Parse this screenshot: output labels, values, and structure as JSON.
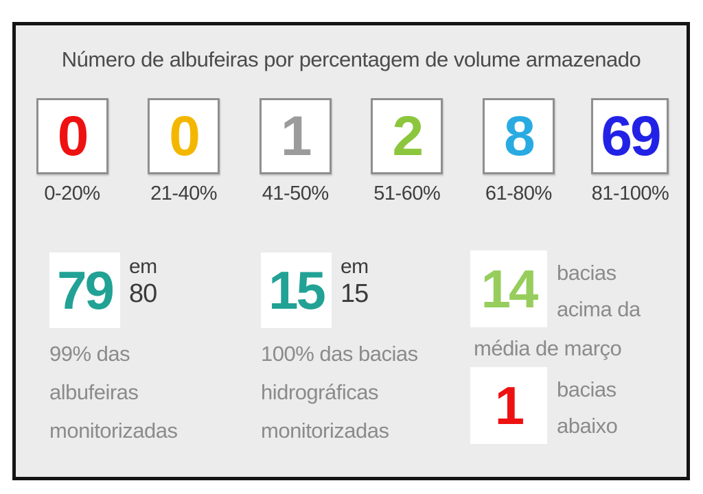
{
  "title": "Número de albufeiras por percentagem de volume armazenado",
  "chart_data": {
    "type": "bar",
    "title": "Número de albufeiras por percentagem de volume armazenado",
    "categories": [
      "0-20%",
      "21-40%",
      "41-50%",
      "51-60%",
      "61-80%",
      "81-100%"
    ],
    "values": [
      0,
      0,
      1,
      2,
      8,
      69
    ],
    "colors": [
      "#EE1111",
      "#F3B700",
      "#9B9B9B",
      "#8CC63E",
      "#29ABE2",
      "#2222E6"
    ],
    "legend": "none",
    "grid": "off"
  },
  "stats": {
    "reservoirs": {
      "value": "79",
      "value_color": "#21A295",
      "of_label": "em",
      "of_total": "80",
      "caption_lines": [
        "99% das",
        "albufeiras",
        "monitorizadas"
      ]
    },
    "basins": {
      "value": "15",
      "value_color": "#21A295",
      "of_label": "em",
      "of_total": "15",
      "caption_lines": [
        "100% das bacias",
        "hidrográficas",
        "monitorizadas"
      ]
    },
    "basin_comparison": {
      "above_value": "14",
      "above_color": "#97CD5C",
      "above_lines": [
        "bacias",
        "acima da"
      ],
      "connector": "média de março",
      "below_value": "1",
      "below_color": "#EE1111",
      "below_lines": [
        "bacias",
        "abaixo"
      ]
    }
  }
}
